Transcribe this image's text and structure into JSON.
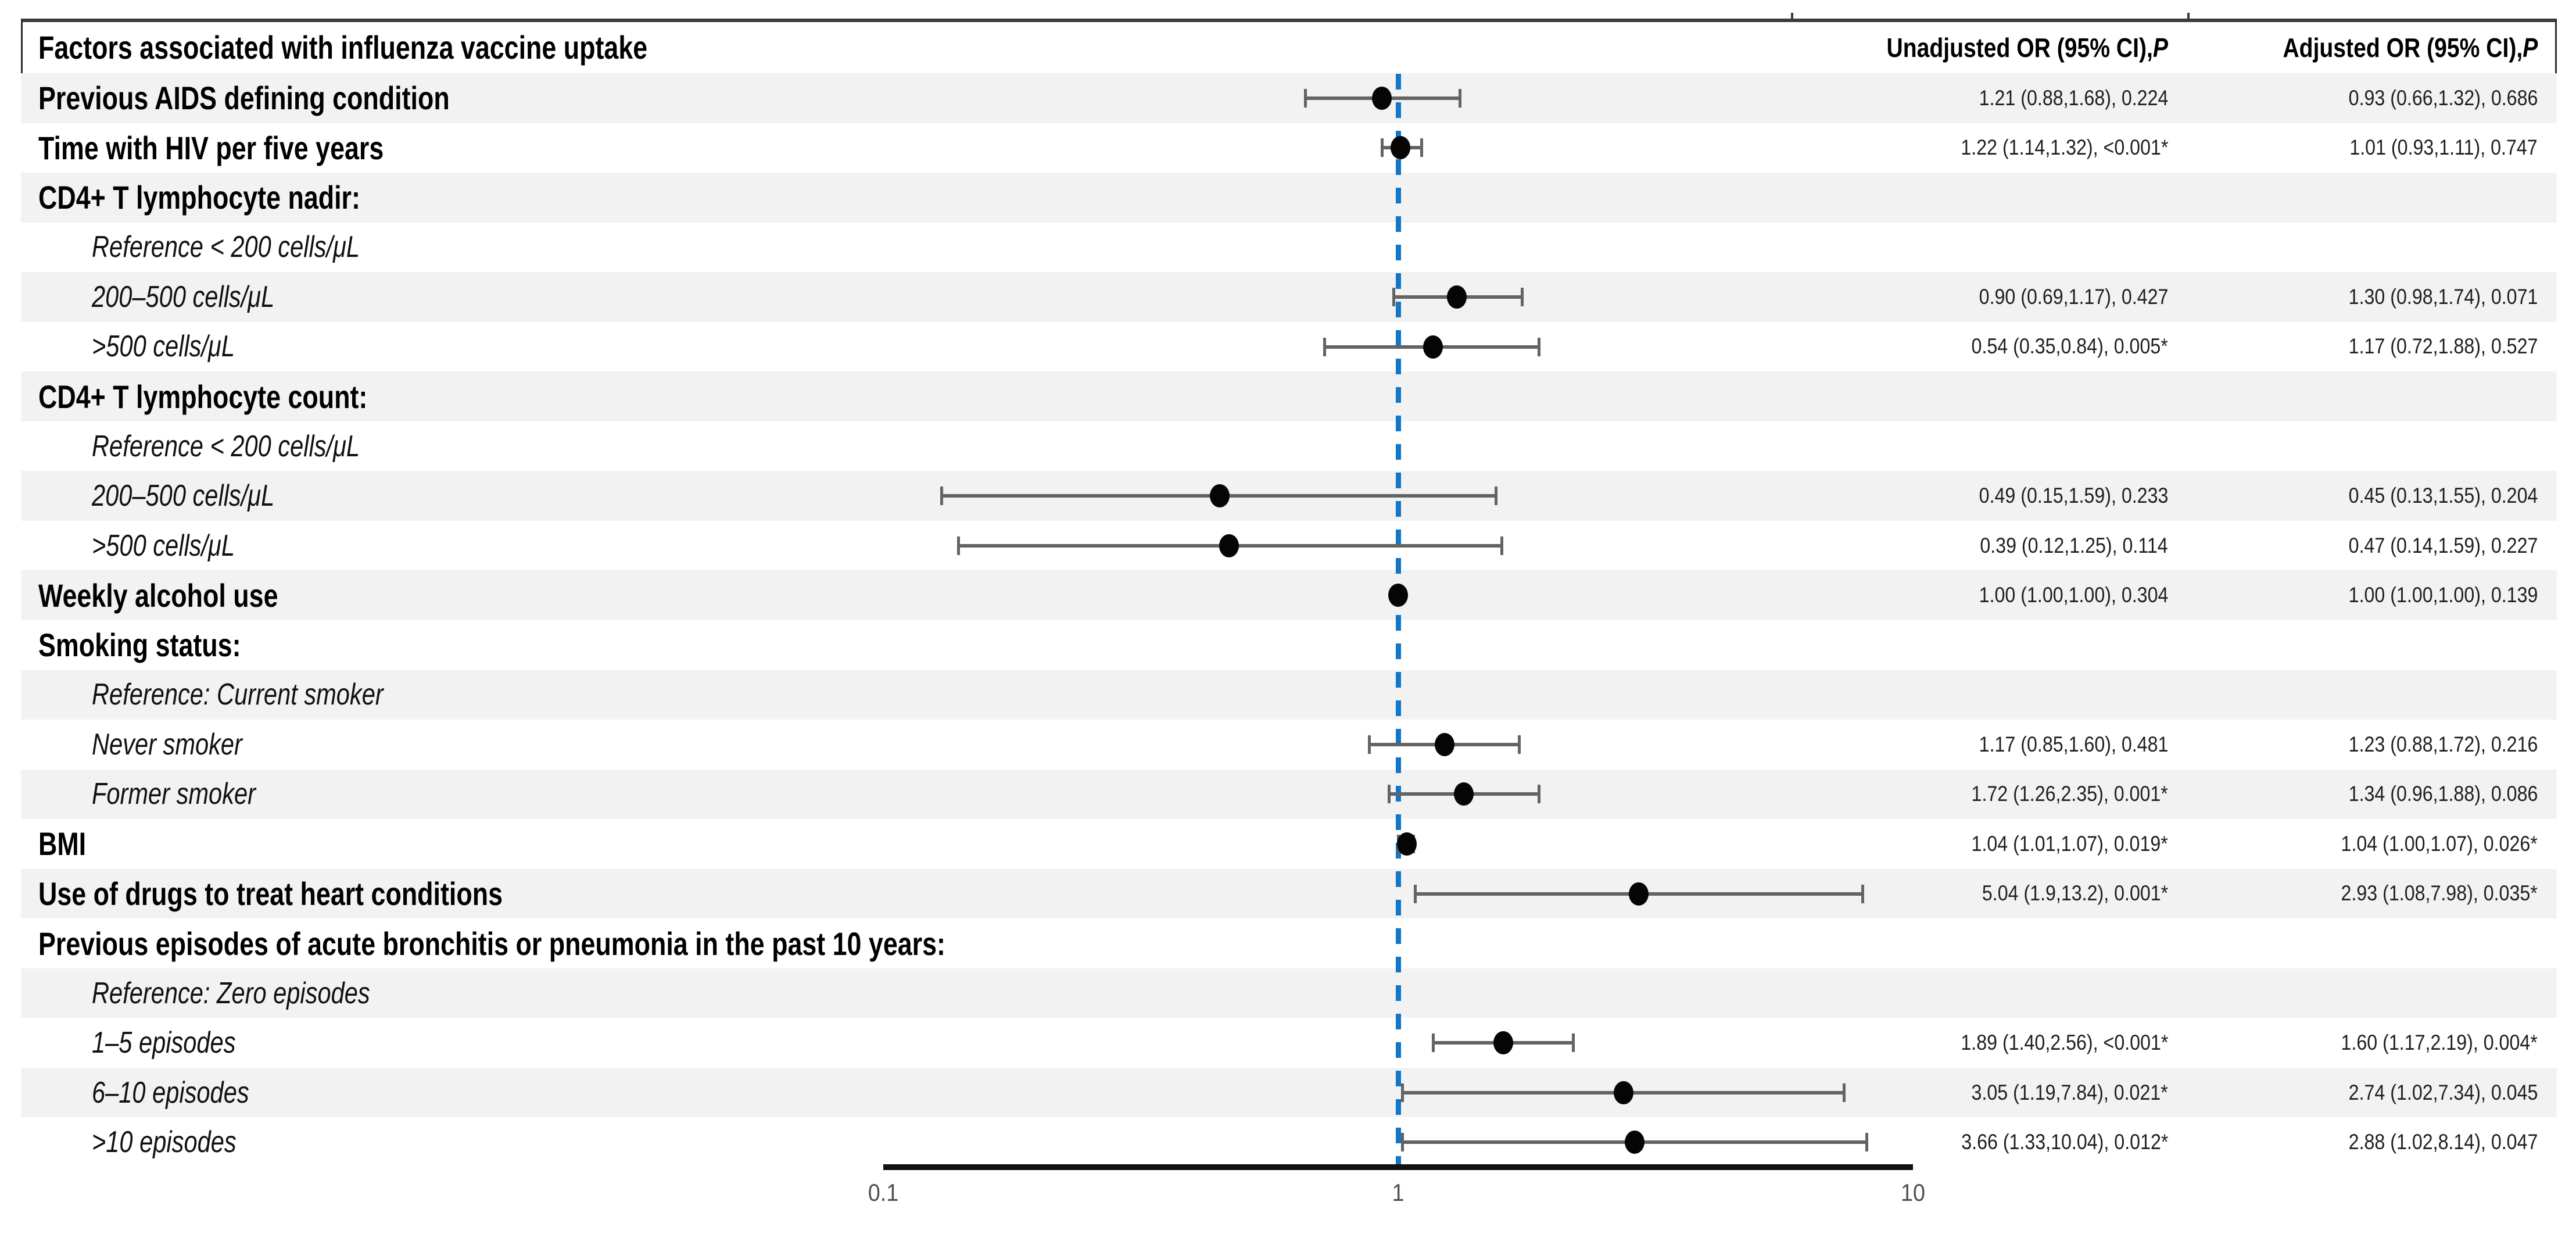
{
  "title": "Factors associated with influenza vaccine uptake",
  "columns": {
    "unadjusted": {
      "prefix": "Unadjusted OR (95% CI), ",
      "p": "P"
    },
    "adjusted": {
      "prefix": "Adjusted OR (95% CI), ",
      "p": "P"
    }
  },
  "colors": {
    "band_gray": "#f2f2f2",
    "reference_line_blue": "#1277c8",
    "whisker_gray": "#636363",
    "point_black": "#050505",
    "axis_black": "#111111",
    "border_dark": "#2e2e2e",
    "tick_label_gray": "#4f4f4f"
  },
  "chart_data": {
    "type": "scatter",
    "variant": "forest-plot",
    "title": "Factors associated with influenza vaccine uptake",
    "plotted_series": "Adjusted OR (95% CI)",
    "x_axis": {
      "scale": "log10",
      "ticks": [
        0.1,
        1,
        10
      ],
      "tick_labels": [
        "0.1",
        "1",
        "10"
      ],
      "range": [
        0.1,
        10
      ],
      "reference_line": 1,
      "grid": false
    },
    "rows": [
      {
        "label": "Previous AIDS defining condition",
        "style": "bold",
        "indent": false,
        "unadjusted": "1.21 (0.88,1.68), 0.224",
        "adjusted": "0.93 (0.66,1.32), 0.686",
        "est": 0.93,
        "lo": 0.66,
        "hi": 1.32
      },
      {
        "label": "Time with HIV per five years",
        "style": "bold",
        "indent": false,
        "unadjusted": "1.22 (1.14,1.32), <0.001*",
        "adjusted": "1.01 (0.93,1.11), 0.747",
        "est": 1.01,
        "lo": 0.93,
        "hi": 1.11
      },
      {
        "label": "CD4+ T lymphocyte nadir:",
        "style": "bold",
        "indent": false,
        "unadjusted": null,
        "adjusted": null,
        "est": null,
        "lo": null,
        "hi": null
      },
      {
        "label": "Reference < 200 cells/μL",
        "style": "italic",
        "indent": true,
        "unadjusted": null,
        "adjusted": null,
        "est": null,
        "lo": null,
        "hi": null
      },
      {
        "label": "200–500 cells/μL",
        "style": "italic",
        "indent": true,
        "unadjusted": "0.90 (0.69,1.17), 0.427",
        "adjusted": "1.30 (0.98,1.74), 0.071",
        "est": 1.3,
        "lo": 0.98,
        "hi": 1.74
      },
      {
        "label": ">500 cells/μL",
        "style": "italic",
        "indent": true,
        "unadjusted": "0.54 (0.35,0.84), 0.005*",
        "adjusted": "1.17 (0.72,1.88), 0.527",
        "est": 1.17,
        "lo": 0.72,
        "hi": 1.88
      },
      {
        "label": "CD4+ T lymphocyte count:",
        "style": "bold",
        "indent": false,
        "unadjusted": null,
        "adjusted": null,
        "est": null,
        "lo": null,
        "hi": null
      },
      {
        "label": "Reference < 200 cells/μL",
        "style": "italic",
        "indent": true,
        "unadjusted": null,
        "adjusted": null,
        "est": null,
        "lo": null,
        "hi": null
      },
      {
        "label": "200–500 cells/μL",
        "style": "italic",
        "indent": true,
        "unadjusted": "0.49 (0.15,1.59), 0.233",
        "adjusted": "0.45 (0.13,1.55), 0.204",
        "est": 0.45,
        "lo": 0.13,
        "hi": 1.55
      },
      {
        "label": ">500 cells/μL",
        "style": "italic",
        "indent": true,
        "unadjusted": "0.39 (0.12,1.25), 0.114",
        "adjusted": "0.47 (0.14,1.59), 0.227",
        "est": 0.47,
        "lo": 0.14,
        "hi": 1.59
      },
      {
        "label": "Weekly alcohol use",
        "style": "bold",
        "indent": false,
        "unadjusted": "1.00 (1.00,1.00), 0.304",
        "adjusted": "1.00 (1.00,1.00), 0.139",
        "est": 1.0,
        "lo": 1.0,
        "hi": 1.0
      },
      {
        "label": "Smoking status:",
        "style": "bold",
        "indent": false,
        "unadjusted": null,
        "adjusted": null,
        "est": null,
        "lo": null,
        "hi": null
      },
      {
        "label": "Reference: Current smoker",
        "style": "italic",
        "indent": true,
        "unadjusted": null,
        "adjusted": null,
        "est": null,
        "lo": null,
        "hi": null
      },
      {
        "label": "Never smoker",
        "style": "italic",
        "indent": true,
        "unadjusted": "1.17 (0.85,1.60), 0.481",
        "adjusted": "1.23 (0.88,1.72), 0.216",
        "est": 1.23,
        "lo": 0.88,
        "hi": 1.72
      },
      {
        "label": "Former smoker",
        "style": "italic",
        "indent": true,
        "unadjusted": "1.72 (1.26,2.35), 0.001*",
        "adjusted": "1.34 (0.96,1.88), 0.086",
        "est": 1.34,
        "lo": 0.96,
        "hi": 1.88
      },
      {
        "label": "BMI",
        "style": "bold",
        "indent": false,
        "unadjusted": "1.04 (1.01,1.07), 0.019*",
        "adjusted": "1.04 (1.00,1.07), 0.026*",
        "est": 1.04,
        "lo": 1.0,
        "hi": 1.07
      },
      {
        "label": "Use of drugs to treat heart conditions",
        "style": "bold",
        "indent": false,
        "unadjusted": "5.04 (1.9,13.2), 0.001*",
        "adjusted": "2.93 (1.08,7.98), 0.035*",
        "est": 2.93,
        "lo": 1.08,
        "hi": 7.98
      },
      {
        "label": "Previous episodes of acute bronchitis or pneumonia in the past 10 years:",
        "style": "bold",
        "indent": false,
        "unadjusted": null,
        "adjusted": null,
        "est": null,
        "lo": null,
        "hi": null
      },
      {
        "label": "Reference: Zero episodes",
        "style": "italic",
        "indent": true,
        "unadjusted": null,
        "adjusted": null,
        "est": null,
        "lo": null,
        "hi": null
      },
      {
        "label": "1–5 episodes",
        "style": "italic",
        "indent": true,
        "unadjusted": "1.89 (1.40,2.56), <0.001*",
        "adjusted": "1.60 (1.17,2.19), 0.004*",
        "est": 1.6,
        "lo": 1.17,
        "hi": 2.19
      },
      {
        "label": "6–10 episodes",
        "style": "italic",
        "indent": true,
        "unadjusted": "3.05 (1.19,7.84), 0.021*",
        "adjusted": "2.74 (1.02,7.34), 0.045",
        "est": 2.74,
        "lo": 1.02,
        "hi": 7.34
      },
      {
        "label": ">10 episodes",
        "style": "italic",
        "indent": true,
        "unadjusted": "3.66 (1.33,10.04), 0.012*",
        "adjusted": "2.88 (1.02,8.14), 0.047",
        "est": 2.88,
        "lo": 1.02,
        "hi": 8.14
      }
    ]
  }
}
